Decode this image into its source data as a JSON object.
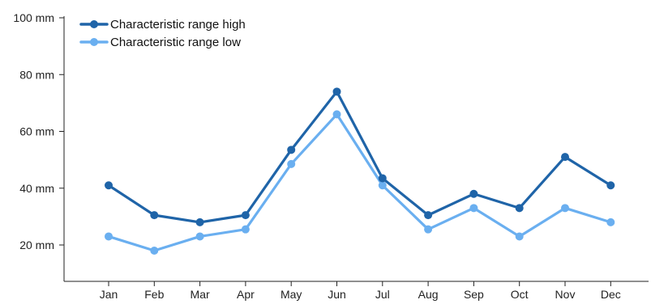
{
  "chart_data": {
    "type": "line",
    "title": "",
    "xlabel": "",
    "ylabel": "",
    "categories": [
      "Jan",
      "Feb",
      "Mar",
      "Apr",
      "May",
      "Jun",
      "Jul",
      "Aug",
      "Sep",
      "Oct",
      "Nov",
      "Dec"
    ],
    "yticks": [
      "20 mm",
      "40 mm",
      "60 mm",
      "80 mm",
      "100 mm"
    ],
    "ytick_values": [
      20,
      40,
      60,
      80,
      100
    ],
    "ylim": [
      8,
      100
    ],
    "unit": "mm",
    "grid": false,
    "legend_position": "top-left",
    "series": [
      {
        "name": "Characteristic range high",
        "color": "#1f64a8",
        "values": [
          41,
          30.5,
          28,
          30.5,
          53.5,
          74,
          43.5,
          30.5,
          38,
          33,
          51,
          41
        ]
      },
      {
        "name": "Characteristic range low",
        "color": "#6aaff0",
        "values": [
          23,
          18,
          23,
          25.5,
          48.5,
          66,
          41,
          25.5,
          33,
          23,
          33,
          28
        ]
      }
    ]
  }
}
